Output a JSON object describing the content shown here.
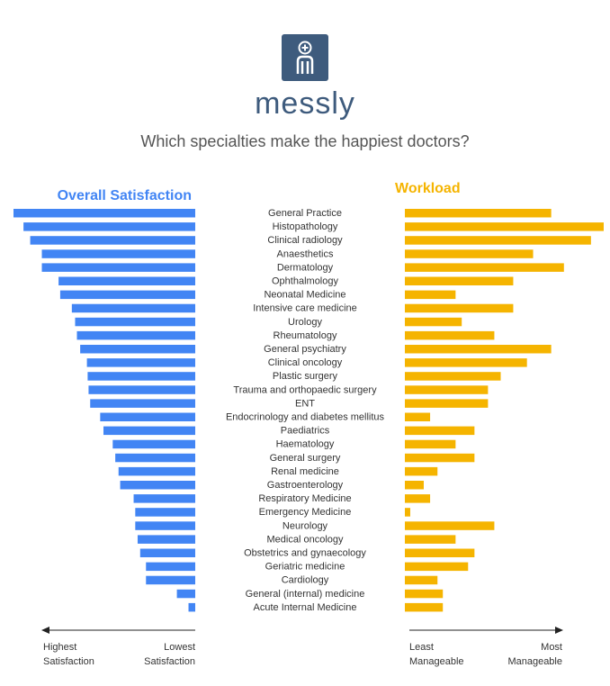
{
  "header": {
    "brand": "messly",
    "subtitle": "Which specialties make the happiest doctors?"
  },
  "colors": {
    "satisfaction": "#4285f4",
    "workload": "#f5b400",
    "brand": "#3e5b7d"
  },
  "icons": {
    "logo": "doctor-plus-icon"
  },
  "chart_data": {
    "type": "bar",
    "panels": {
      "satisfaction": {
        "title": "Overall Satisfaction",
        "axis_left": [
          "Highest",
          "Satisfaction"
        ],
        "axis_right": [
          "Lowest",
          "Satisfaction"
        ],
        "direction": "left",
        "scale_max": 100
      },
      "workload": {
        "title": "Workload",
        "axis_left": [
          "Least",
          "Manageable"
        ],
        "axis_right": [
          "Most",
          "Manageable"
        ],
        "direction": "right",
        "scale_max": 100
      }
    },
    "categories": [
      "General Practice",
      "Histopathology",
      "Clinical radiology",
      "Anaesthetics",
      "Dermatology",
      "Ophthalmology",
      "Neonatal Medicine",
      "Intensive care medicine",
      "Urology",
      "Rheumatology",
      "General psychiatry",
      "Clinical oncology",
      "Plastic surgery",
      "Trauma and orthopaedic surgery",
      "ENT",
      "Endocrinology and diabetes mellitus",
      "Paediatrics",
      "Haematology",
      "General surgery",
      "Renal medicine",
      "Gastroenterology",
      "Respiratory Medicine",
      "Emergency Medicine",
      "Neurology",
      "Medical oncology",
      "Obstetrics and gynaecology",
      "Geriatric medicine",
      "Cardiology",
      "General (internal) medicine",
      "Acute Internal Medicine"
    ],
    "series": [
      {
        "name": "Overall Satisfaction",
        "values": [
          100,
          94.5,
          90.8,
          84.4,
          84.4,
          75.2,
          74.3,
          67.9,
          66.1,
          65.1,
          63.3,
          59.6,
          59.2,
          58.7,
          57.8,
          52.3,
          50.5,
          45.4,
          44.0,
          42.2,
          41.3,
          33.9,
          33.0,
          33.0,
          31.7,
          30.3,
          27.1,
          27.1,
          10.1,
          3.7
        ]
      },
      {
        "name": "Workload",
        "values": [
          73.6,
          100,
          93.6,
          64.5,
          80.0,
          54.5,
          25.5,
          54.5,
          28.6,
          45.0,
          73.6,
          61.4,
          48.2,
          41.8,
          41.8,
          12.7,
          35.0,
          25.5,
          35.0,
          16.4,
          9.5,
          12.7,
          2.7,
          45.0,
          25.5,
          35.0,
          31.8,
          16.4,
          19.1,
          19.1
        ]
      }
    ]
  }
}
